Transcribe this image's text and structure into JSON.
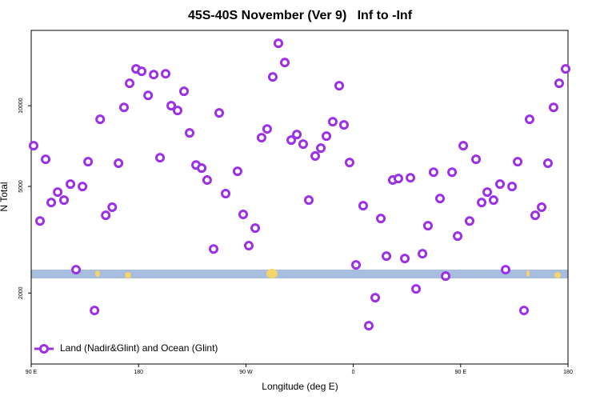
{
  "chart_data": {
    "type": "scatter",
    "title": "45S-40S November (Ver 9)   Inf to -Inf",
    "xlabel": "Longitude (deg E)",
    "ylabel": "N Total",
    "xlim": [
      90,
      540
    ],
    "xticks": [
      {
        "value": 90,
        "label": "90 E"
      },
      {
        "value": 180,
        "label": "180"
      },
      {
        "value": 270,
        "label": "90 W"
      },
      {
        "value": 360,
        "label": "0"
      },
      {
        "value": 450,
        "label": "90 E"
      },
      {
        "value": 540,
        "label": "180"
      }
    ],
    "ylim": [
      1087,
      19100
    ],
    "yscale": "log",
    "yticks": [
      2000,
      5000,
      10000
    ],
    "legend": "lower left",
    "series": [
      {
        "name": "Land (Nadir&Glint) and Ocean (Glint)",
        "color": "#9b30e6",
        "x": [
          92.0,
          97.4,
          102.1,
          106.8,
          112.2,
          117.5,
          122.9,
          127.6,
          133.0,
          137.7,
          143.1,
          147.8,
          152.5,
          157.9,
          163.2,
          167.8,
          172.5,
          177.9,
          182.6,
          188.0,
          192.7,
          198.0,
          202.7,
          207.4,
          212.7,
          218.1,
          222.8,
          228.2,
          232.9,
          237.5,
          242.9,
          247.6,
          253.0,
          263.0,
          267.7,
          272.4,
          277.8,
          283.1,
          287.8,
          292.5,
          297.2,
          302.6,
          308.0,
          312.7,
          318.0,
          322.7,
          328.1,
          332.8,
          337.5,
          342.8,
          348.2,
          352.2,
          356.9,
          362.3,
          368.3,
          373.0,
          378.4,
          383.1,
          387.8,
          393.1,
          397.8,
          403.2,
          407.9,
          412.6,
          418.0,
          422.6,
          427.3,
          432.7,
          437.4,
          442.8,
          447.5,
          452.2,
          457.5,
          462.9,
          467.6,
          472.3,
          477.6,
          483.0,
          487.7,
          493.1,
          497.8,
          503.1,
          507.8,
          512.5,
          517.9,
          523.2,
          527.9,
          532.6,
          538.0
        ],
        "values": [
          7090,
          3715,
          6310,
          4355,
          4760,
          4444,
          5100,
          2445,
          4995,
          6180,
          1722,
          8900,
          3900,
          4180,
          6100,
          9860,
          12120,
          13720,
          13440,
          10930,
          13070,
          6400,
          13160,
          10000,
          9600,
          11320,
          7920,
          6010,
          5850,
          5280,
          2920,
          9400,
          4700,
          5690,
          3930,
          3005,
          3494,
          7600,
          8190,
          12810,
          17090,
          14490,
          7440,
          7810,
          7190,
          4444,
          6490,
          6950,
          7700,
          8720,
          11880,
          8480,
          6140,
          2547,
          4234,
          1510,
          1921,
          3795,
          2747,
          5280,
          5350,
          2690,
          5385,
          2072,
          2805,
          3566,
          5650,
          4505,
          2313,
          5650,
          3262,
          7090,
          3715,
          6310,
          4355,
          4760,
          4444,
          5100,
          2445,
          4995,
          6180,
          1722,
          8900,
          3900,
          4180,
          6100,
          9860,
          12120,
          13720
        ]
      }
    ]
  }
}
